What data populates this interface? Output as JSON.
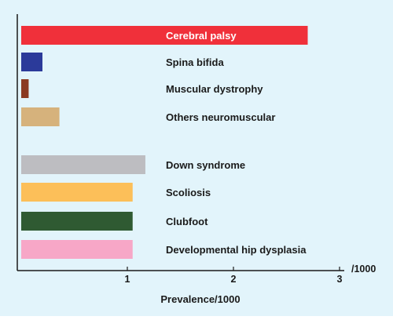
{
  "chart_data": {
    "type": "bar",
    "orientation": "horizontal",
    "categories": [
      "Cerebral palsy",
      "Spina bifida",
      "Muscular dystrophy",
      "Others neuromuscular",
      "Down syndrome",
      "Scoliosis",
      "Clubfoot",
      "Developmental hip dysplasia"
    ],
    "values": [
      2.7,
      0.2,
      0.07,
      0.36,
      1.17,
      1.05,
      1.05,
      1.05
    ],
    "bar_colors": [
      "#f0303a",
      "#2b3a9a",
      "#8b3a22",
      "#d6b27c",
      "#bdbdc1",
      "#fcbf59",
      "#2f5a32",
      "#f7a7c7"
    ],
    "label_colors": [
      "#ffffff",
      "#1a1a1a",
      "#1a1a1a",
      "#1a1a1a",
      "#1a1a1a",
      "#1a1a1a",
      "#1a1a1a",
      "#1a1a1a"
    ],
    "title": "",
    "xlabel": "Prevalence/1000",
    "x_unit_label": "/1000",
    "xlim": [
      0,
      3
    ],
    "x_ticks": [
      1,
      2,
      3
    ],
    "x_tick_labels": [
      "1",
      "2",
      "3"
    ],
    "grid": false,
    "legend": "none",
    "background_color": "#e2f4fb"
  }
}
